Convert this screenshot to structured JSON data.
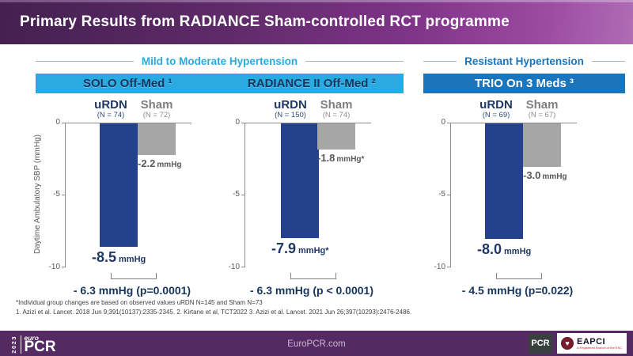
{
  "slide": {
    "title": "Primary Results from RADIANCE Sham-controlled RCT programme"
  },
  "sections": [
    {
      "label": "Mild to Moderate Hypertension",
      "color": "#29ABE2"
    },
    {
      "label": "Resistant Hypertension",
      "color": "#1B75BC"
    }
  ],
  "axis": {
    "label": "Daytime Ambulatory SBP (mmHg)",
    "ticks": [
      "0",
      "-5",
      "-10"
    ],
    "max": 0,
    "min": -10
  },
  "panels": [
    {
      "title": "SOLO Off-Med ¹",
      "bars": [
        {
          "name": "uRDN",
          "n_label": "(N = 74)",
          "value": -8.5,
          "value_label": "-8.5",
          "unit_label": "mmHg"
        },
        {
          "name": "Sham",
          "n_label": "(N = 72)",
          "value": -2.2,
          "value_label": "-2.2",
          "unit_label": "mmHg"
        }
      ],
      "difference": "- 6.3 mmHg (p=0.0001)"
    },
    {
      "title": "RADIANCE II Off-Med ²",
      "bars": [
        {
          "name": "uRDN",
          "n_label": "(N = 150)",
          "value": -7.9,
          "value_label": "-7.9",
          "unit_label": "mmHg*"
        },
        {
          "name": "Sham",
          "n_label": "(N = 74)",
          "value": -1.8,
          "value_label": "-1.8",
          "unit_label": "mmHg*"
        }
      ],
      "difference": "- 6.3 mmHg (p < 0.0001)"
    },
    {
      "title": "TRIO On 3 Meds ³",
      "bars": [
        {
          "name": "uRDN",
          "n_label": "(N = 69)",
          "value": -8.0,
          "value_label": "-8.0",
          "unit_label": "mmHg"
        },
        {
          "name": "Sham",
          "n_label": "(N = 67)",
          "value": -3.0,
          "value_label": "-3.0",
          "unit_label": "mmHg"
        }
      ],
      "difference": "- 4.5 mmHg (p=0.022)"
    }
  ],
  "footnotes": [
    "*Individual group changes are based on observed values uRDN N=145 and Sham N=73",
    "1.  Azizi et al. Lancet. 2018 Jun 9;391(10137):2335-2345.  2. Kirtane et al, TCT2022   3. Azizi et al. Lancet. 2021 Jun 26;397(10293):2476-2486."
  ],
  "footer": {
    "year": "2023",
    "euro": "euro",
    "pcr": "PCR",
    "url": "EuroPCR.com",
    "pcr_badge": "PCR",
    "eapci": "EAPCI",
    "eapci_subtext": "A Registered Branch of the ESC"
  },
  "colors": {
    "header_gradient_start": "#44204F",
    "header_gradient_end": "#B06CB5",
    "section_mild": "#29ABE2",
    "section_resistant": "#1B75BC",
    "urdn_bar": "#24418E",
    "sham_bar": "#A6A6A6",
    "navy_text": "#1F3864",
    "footer_purple": "#552961"
  },
  "chart_data": [
    {
      "type": "bar",
      "title": "SOLO Off-Med",
      "group": "Mild to Moderate Hypertension",
      "categories": [
        "uRDN (N = 74)",
        "Sham (N = 72)"
      ],
      "values": [
        -8.5,
        -2.2
      ],
      "xlabel": "",
      "ylabel": "Daytime Ambulatory SBP (mmHg)",
      "ylim": [
        -10,
        0
      ],
      "yticks": [
        0,
        -5,
        -10
      ],
      "grid": false,
      "bar_colors": [
        "#24418E",
        "#A6A6A6"
      ],
      "annotation": "- 6.3 mmHg (p=0.0001)"
    },
    {
      "type": "bar",
      "title": "RADIANCE II Off-Med",
      "group": "Mild to Moderate Hypertension",
      "categories": [
        "uRDN (N = 150)",
        "Sham (N = 74)"
      ],
      "values": [
        -7.9,
        -1.8
      ],
      "xlabel": "",
      "ylabel": "Daytime Ambulatory SBP (mmHg)",
      "ylim": [
        -10,
        0
      ],
      "yticks": [
        0,
        -5,
        -10
      ],
      "grid": false,
      "bar_colors": [
        "#24418E",
        "#A6A6A6"
      ],
      "annotation": "- 6.3 mmHg (p < 0.0001)"
    },
    {
      "type": "bar",
      "title": "TRIO On 3 Meds",
      "group": "Resistant Hypertension",
      "categories": [
        "uRDN (N = 69)",
        "Sham (N = 67)"
      ],
      "values": [
        -8.0,
        -3.0
      ],
      "xlabel": "",
      "ylabel": "Daytime Ambulatory SBP (mmHg)",
      "ylim": [
        -10,
        0
      ],
      "yticks": [
        0,
        -5,
        -10
      ],
      "grid": false,
      "bar_colors": [
        "#24418E",
        "#A6A6A6"
      ],
      "annotation": "- 4.5 mmHg (p=0.022)"
    }
  ]
}
